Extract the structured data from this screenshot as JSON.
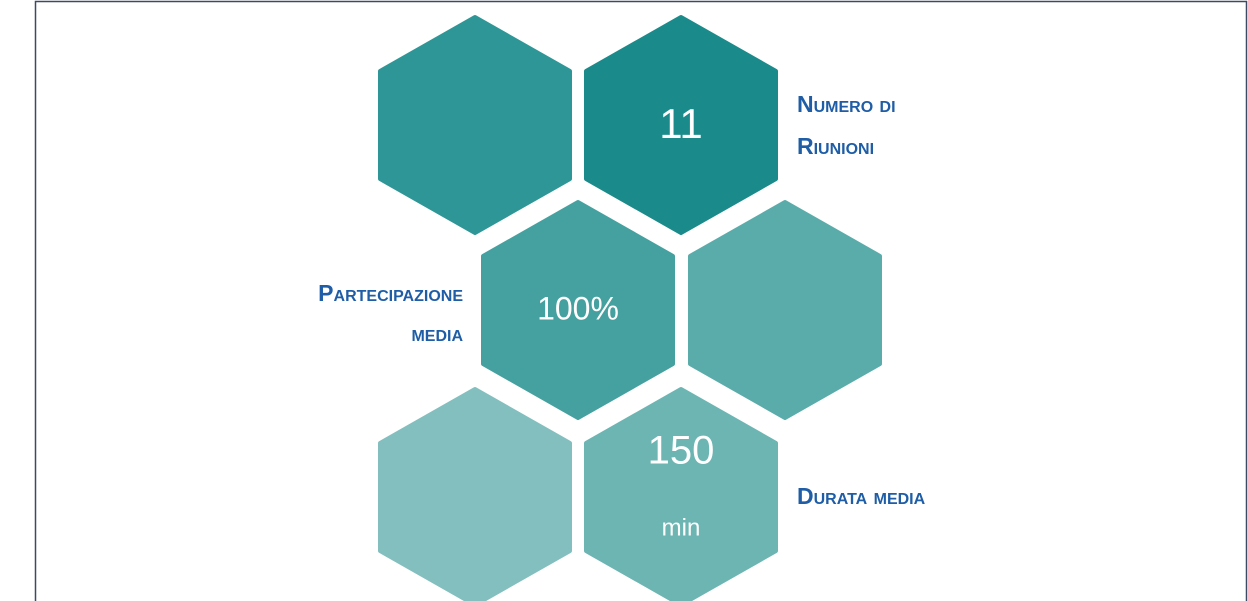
{
  "items": [
    {
      "value": "11",
      "label": [
        "Numero di",
        "Riunioni"
      ]
    },
    {
      "value": "100%",
      "label": [
        "Partecipazione",
        "media"
      ]
    },
    {
      "value": "150",
      "unit": "min",
      "label": [
        "Durata media"
      ]
    }
  ]
}
